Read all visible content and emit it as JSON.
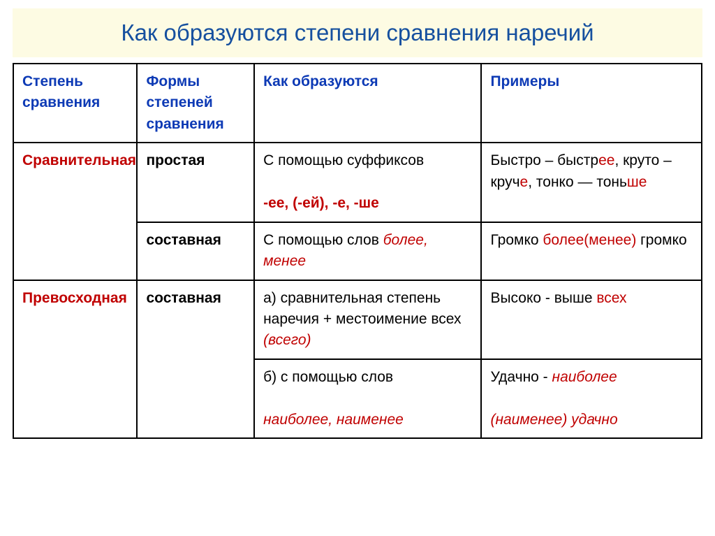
{
  "title": "Как образуются степени сравнения наречий",
  "headers": {
    "degree": "Степень сравнения",
    "forms": "Формы степеней сравнения",
    "how": "Как образуются",
    "examples": "Примеры"
  },
  "comparative": {
    "degree": "Сравнительная",
    "simple": {
      "form": "простая",
      "how_prefix": "С помощью суффиксов",
      "suffixes": "-ее, (-ей), -е, -ше",
      "ex_1a": "Быстро – быстр",
      "ex_1b": "ее",
      "ex_2a": ", круто – круч",
      "ex_2b": "е",
      "ex_3a": ", тонко — тонь",
      "ex_3b": "ше"
    },
    "compound": {
      "form": "составная",
      "how_prefix": "С помощью слов ",
      "how_words": "более, менее",
      "ex_a": "Громко ",
      "ex_b": "более(менее)",
      "ex_c": " громко"
    }
  },
  "superlative": {
    "degree": "Превосходная",
    "compound": {
      "form": "составная",
      "how_a_prefix": "а) сравнительная степень наречия + местоимение всех ",
      "how_a_paren": "(всего)",
      "ex_a_1": "Высоко - выше ",
      "ex_a_2": "всех",
      "how_b_prefix": "б) с помощью слов",
      "how_b_words": "наиболее, наименее",
      "ex_b_1": "Удачно - ",
      "ex_b_2": "наиболее",
      "ex_b_3": "(наименее) удачно"
    }
  }
}
